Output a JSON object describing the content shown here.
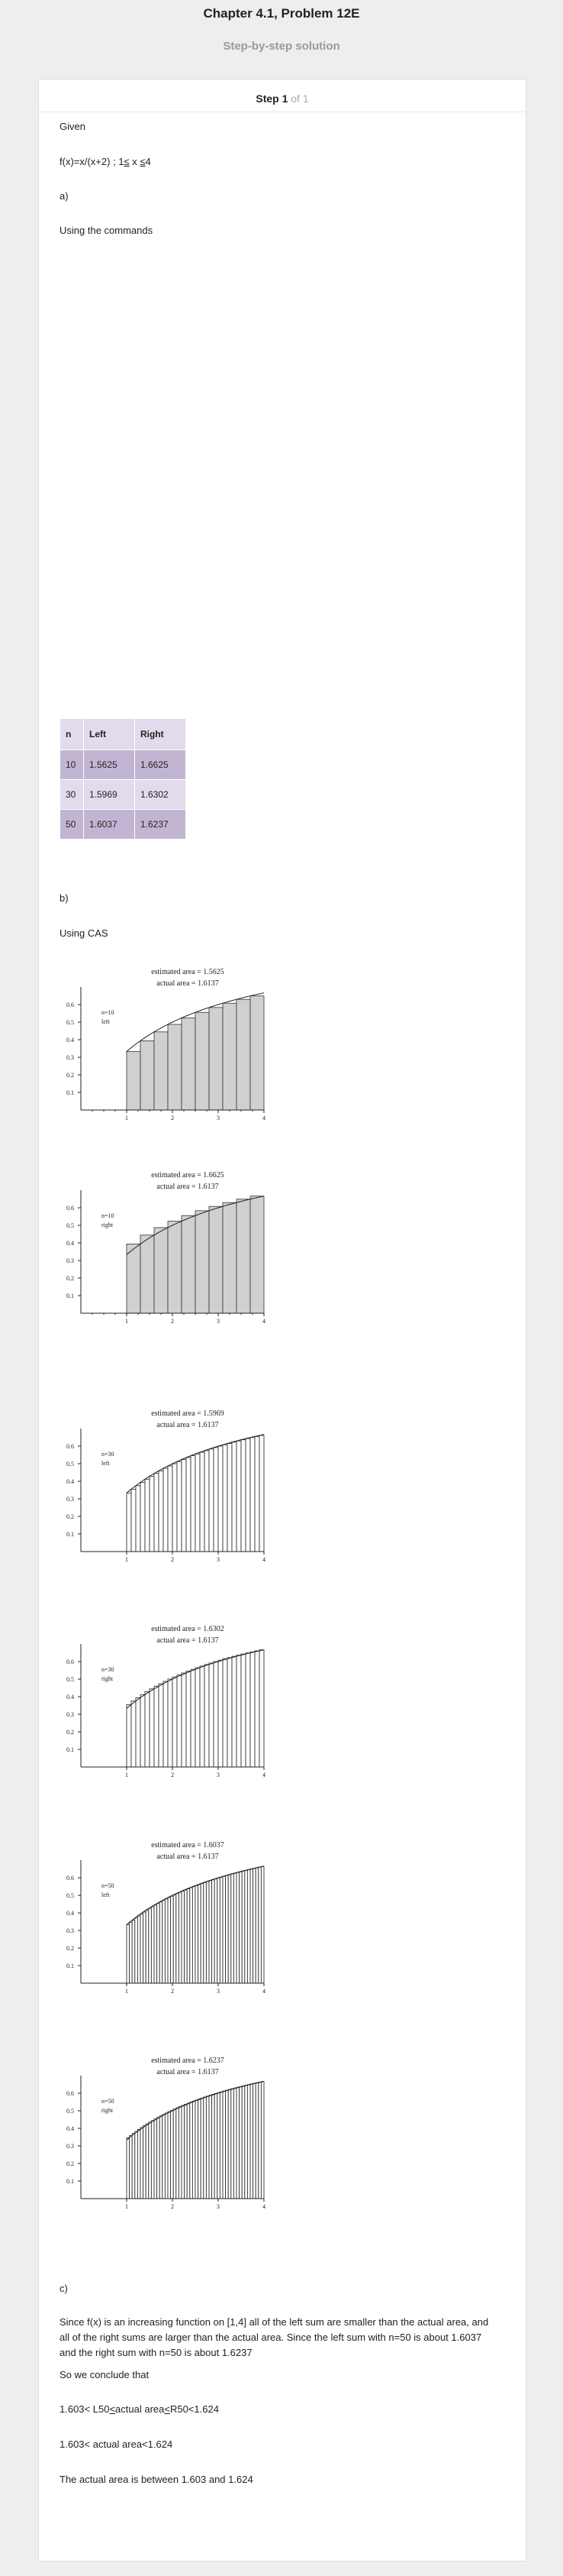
{
  "header": {
    "title": "Chapter 4.1, Problem 12E",
    "subtitle": "Step-by-step solution"
  },
  "step": {
    "label": "Step 1",
    "of": "of 1"
  },
  "content": {
    "given": "Given",
    "function_prefix": "f(x)=x/(x+2) ; 1",
    "function_le1": "≤",
    "function_mid": " x ",
    "function_le2": "≤",
    "function_end": "4",
    "part_a": "a)",
    "using_commands": "Using the commands",
    "part_b": "b)",
    "using_cas": "Using CAS",
    "part_c": "c)",
    "explanation": "Since f(x) is an increasing function on [1,4] all of the left sum are smaller than the actual area, and all of the right sums are larger than the actual area. Since the left sum with n=50 is about 1.6037 and the right sum with n=50 is about 1.6237",
    "conclude": "So we conclude that",
    "ineq1_a": "1.603< L50",
    "ineq1_b": "<",
    "ineq1_c": "actual area",
    "ineq1_d": "<",
    "ineq1_e": "R50<1.624",
    "ineq2": "1.603< actual area<1.624",
    "final": "The actual area is between 1.603 and 1.624"
  },
  "table": {
    "headers": [
      "n",
      "Left",
      "Right"
    ],
    "rows": [
      [
        "10",
        "1.5625",
        "1.6625"
      ],
      [
        "30",
        "1.5969",
        "1.6302"
      ],
      [
        "50",
        "1.6037",
        "1.6237"
      ]
    ]
  },
  "plots": [
    {
      "estimate": "estimated area = 1.5625",
      "actual": "actual area = 1.6137",
      "n_label": "n=10",
      "side_label": "left"
    },
    {
      "estimate": "estimated area = 1.6625",
      "actual": "actual area = 1.6137",
      "n_label": "n=10",
      "side_label": "right"
    },
    {
      "estimate": "estimated area = 1.5969",
      "actual": "actual area = 1.6137",
      "n_label": "n=30",
      "side_label": "left"
    },
    {
      "estimate": "estimated area = 1.6302",
      "actual": "actual area = 1.6137",
      "n_label": "n=30",
      "side_label": "right"
    },
    {
      "estimate": "estimated area = 1.6037",
      "actual": "actual area = 1.6137",
      "n_label": "n=50",
      "side_label": "left"
    },
    {
      "estimate": "estimated area = 1.6237",
      "actual": "actual area = 1.6137",
      "n_label": "n=50",
      "side_label": "right"
    }
  ],
  "chart_data": [
    {
      "type": "bar",
      "title": "estimated area = 1.5625",
      "function": "x/(x+2)",
      "interval": [
        1,
        4
      ],
      "n": 10,
      "rule": "left",
      "xticks": [
        "1",
        "2",
        "3",
        "4"
      ],
      "yticks": [
        "0.1",
        "0.2",
        "0.3",
        "0.4",
        "0.5",
        "0.6"
      ],
      "xlim": [
        0,
        4
      ],
      "ylim": [
        0,
        0.7
      ]
    },
    {
      "type": "bar",
      "title": "estimated area = 1.6625",
      "function": "x/(x+2)",
      "interval": [
        1,
        4
      ],
      "n": 10,
      "rule": "right",
      "xticks": [
        "1",
        "2",
        "3",
        "4"
      ],
      "yticks": [
        "0.1",
        "0.2",
        "0.3",
        "0.4",
        "0.5",
        "0.6"
      ],
      "xlim": [
        0,
        4
      ],
      "ylim": [
        0,
        0.7
      ]
    },
    {
      "type": "bar",
      "title": "estimated area = 1.5969",
      "function": "x/(x+2)",
      "interval": [
        1,
        4
      ],
      "n": 30,
      "rule": "left",
      "xticks": [
        "1",
        "2",
        "3",
        "4"
      ],
      "yticks": [
        "0.1",
        "0.2",
        "0.3",
        "0.4",
        "0.5",
        "0.6"
      ],
      "xlim": [
        0,
        4
      ],
      "ylim": [
        0,
        0.7
      ]
    },
    {
      "type": "bar",
      "title": "estimated area = 1.6302",
      "function": "x/(x+2)",
      "interval": [
        1,
        4
      ],
      "n": 30,
      "rule": "right",
      "xticks": [
        "1",
        "2",
        "3",
        "4"
      ],
      "yticks": [
        "0.1",
        "0.2",
        "0.3",
        "0.4",
        "0.5",
        "0.6"
      ],
      "xlim": [
        0,
        4
      ],
      "ylim": [
        0,
        0.7
      ]
    },
    {
      "type": "bar",
      "title": "estimated area = 1.6037",
      "function": "x/(x+2)",
      "interval": [
        1,
        4
      ],
      "n": 50,
      "rule": "left",
      "xticks": [
        "1",
        "2",
        "3",
        "4"
      ],
      "yticks": [
        "0.1",
        "0.2",
        "0.3",
        "0.4",
        "0.5",
        "0.6"
      ],
      "xlim": [
        0,
        4
      ],
      "ylim": [
        0,
        0.7
      ]
    },
    {
      "type": "bar",
      "title": "estimated area = 1.6237",
      "function": "x/(x+2)",
      "interval": [
        1,
        4
      ],
      "n": 50,
      "rule": "right",
      "xticks": [
        "1",
        "2",
        "3",
        "4"
      ],
      "yticks": [
        "0.1",
        "0.2",
        "0.3",
        "0.4",
        "0.5",
        "0.6"
      ],
      "xlim": [
        0,
        4
      ],
      "ylim": [
        0,
        0.7
      ]
    }
  ]
}
